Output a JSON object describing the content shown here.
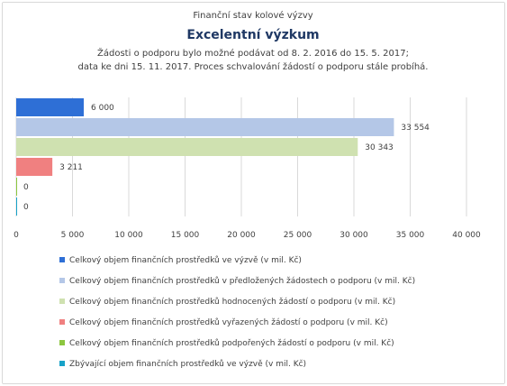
{
  "chart_data": {
    "type": "bar",
    "orientation": "horizontal",
    "pretitle": "Finanční stav kolové výzvy",
    "title": "Excelentní výzkum",
    "subtitle_lines": [
      "Žádosti o podporu bylo možné podávat od 8. 2. 2016 do 15. 5. 2017;",
      "data ke dni 15. 11. 2017. Proces schvalování žádostí o podporu stále probíhá."
    ],
    "xlim": [
      0,
      40000
    ],
    "x_ticks": [
      {
        "value": 0,
        "label": "0"
      },
      {
        "value": 5000,
        "label": "5 000"
      },
      {
        "value": 10000,
        "label": "10 000"
      },
      {
        "value": 15000,
        "label": "15 000"
      },
      {
        "value": 20000,
        "label": "20 000"
      },
      {
        "value": 25000,
        "label": "25 000"
      },
      {
        "value": 30000,
        "label": "30 000"
      },
      {
        "value": 35000,
        "label": "35 000"
      },
      {
        "value": 40000,
        "label": "40 000"
      }
    ],
    "gridlines": "vertical",
    "legend_position": "bottom",
    "series": [
      {
        "name": "Celkový objem finančních prostředků ve výzvě (v mil. Kč)",
        "value": 6000,
        "label": "6 000",
        "color": "#2e6fd6"
      },
      {
        "name": "Celkový objem finančních prostředků v předložených žádostech o podporu (v mil. Kč)",
        "value": 33554,
        "label": "33 554",
        "color": "#b4c7e7"
      },
      {
        "name": "Celkový objem finančních prostředků hodnocených žádostí o podporu (v mil. Kč)",
        "value": 30343,
        "label": "30 343",
        "color": "#cfe1b0"
      },
      {
        "name": "Celkový objem finančních prostředků vyřazených žádostí o podporu (v mil. Kč)",
        "value": 3211,
        "label": "3 211",
        "color": "#f08080"
      },
      {
        "name": "Celkový objem finančních prostředků podpořených žádostí o podporu (v mil. Kč)",
        "value": 0,
        "label": "0",
        "color": "#8cc63f"
      },
      {
        "name": "Zbývající objem finančních prostředků ve výzvě (v mil. Kč)",
        "value": 0,
        "label": "0",
        "color": "#17a2c8"
      }
    ]
  }
}
